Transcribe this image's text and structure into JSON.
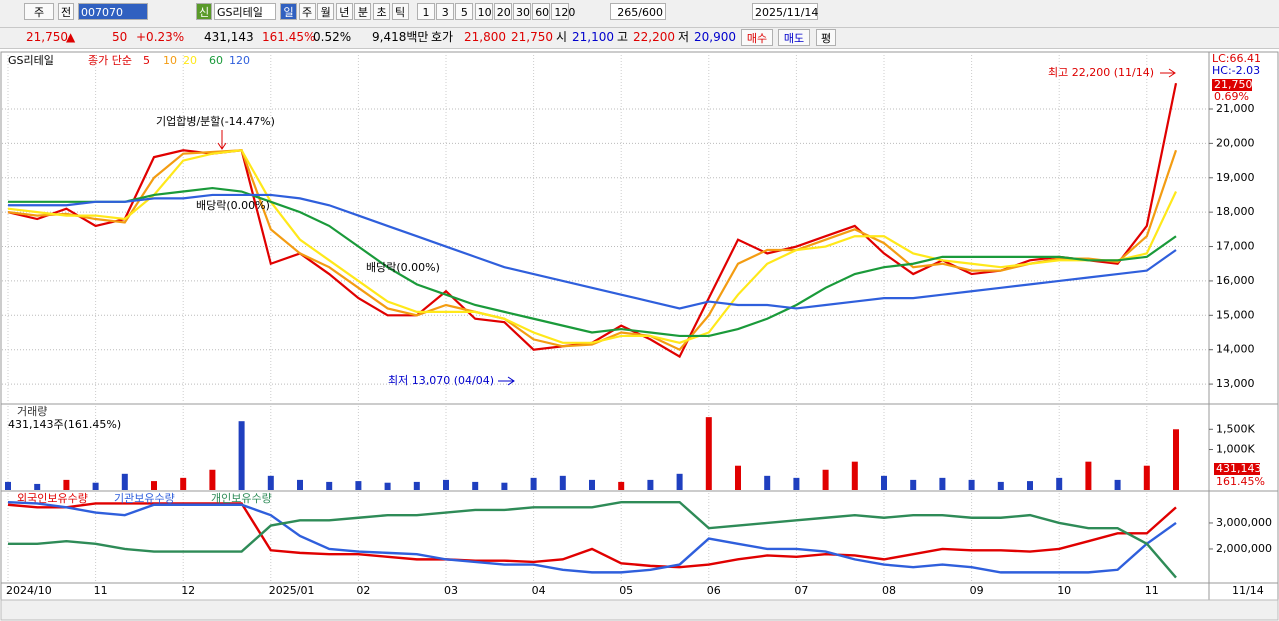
{
  "toolbar": {
    "market": "주",
    "prev": "전",
    "code": "007070",
    "tag": "신",
    "name": "GS리테일",
    "periods": [
      "일",
      "주",
      "월",
      "년",
      "분",
      "초",
      "틱"
    ],
    "intervals": [
      "1",
      "3",
      "5",
      "10",
      "20",
      "30",
      "60",
      "120"
    ],
    "count": "265",
    "max": "/600",
    "date": "2025/11/14"
  },
  "quote": {
    "price": "21,750",
    "arrow": "▲",
    "change": "50",
    "change_pct": "+0.23%",
    "volume": "431,143",
    "volume_ratio": "161.45%",
    "turnover": "0.52%",
    "amount": "9,418백만",
    "ask_label": "호가",
    "ask": "21,800",
    "bid": "21,750",
    "open_label": "시",
    "open": "21,100",
    "high_label": "고",
    "high": "22,200",
    "low_label": "저",
    "low": "20,900",
    "buy": "매수",
    "sell": "매도",
    "avg": "평"
  },
  "chart_data": [
    {
      "type": "line",
      "title": "GS리테일",
      "subtitle": "종가 단순",
      "categories": [
        "2024/10",
        null,
        null,
        "11",
        null,
        null,
        "12",
        null,
        null,
        "2025/01",
        null,
        null,
        "02",
        null,
        null,
        "03",
        null,
        null,
        "04",
        null,
        null,
        "05",
        null,
        null,
        "06",
        null,
        null,
        "07",
        null,
        null,
        "08",
        null,
        null,
        "09",
        null,
        null,
        "10",
        null,
        null,
        "11",
        null
      ],
      "series": [
        {
          "name": "5",
          "color": "#e00000",
          "values": [
            18000,
            17800,
            18100,
            17600,
            17800,
            19600,
            19800,
            19700,
            19800,
            16500,
            16800,
            16200,
            15500,
            15000,
            15000,
            15700,
            14900,
            14800,
            14000,
            14100,
            14200,
            14700,
            14300,
            13800,
            15500,
            17200,
            16800,
            17000,
            17300,
            17600,
            16800,
            16200,
            16600,
            16200,
            16300,
            16600,
            16700,
            16600,
            16500,
            17600,
            21750
          ]
        },
        {
          "name": "10",
          "color": "#f39c12",
          "values": [
            18000,
            17900,
            17950,
            17800,
            17700,
            19000,
            19700,
            19750,
            19800,
            17500,
            16800,
            16400,
            15800,
            15200,
            15000,
            15300,
            15100,
            14900,
            14300,
            14100,
            14150,
            14500,
            14400,
            14000,
            15000,
            16500,
            16900,
            16900,
            17200,
            17500,
            17100,
            16400,
            16500,
            16300,
            16300,
            16500,
            16650,
            16650,
            16550,
            17300,
            19800
          ]
        },
        {
          "name": "20",
          "color": "#ffe81a",
          "values": [
            18100,
            18000,
            17900,
            17900,
            17800,
            18500,
            19500,
            19700,
            19800,
            18300,
            17200,
            16600,
            16000,
            15400,
            15100,
            15100,
            15100,
            14900,
            14500,
            14200,
            14200,
            14400,
            14400,
            14200,
            14500,
            15600,
            16500,
            16900,
            17000,
            17300,
            17300,
            16800,
            16600,
            16500,
            16400,
            16500,
            16600,
            16600,
            16600,
            16800,
            18600
          ]
        },
        {
          "name": "60",
          "color": "#1a9a3a",
          "values": [
            18300,
            18300,
            18300,
            18300,
            18300,
            18500,
            18600,
            18700,
            18600,
            18300,
            18000,
            17600,
            17000,
            16400,
            15900,
            15600,
            15300,
            15100,
            14900,
            14700,
            14500,
            14600,
            14500,
            14400,
            14400,
            14600,
            14900,
            15300,
            15800,
            16200,
            16400,
            16500,
            16700,
            16700,
            16700,
            16700,
            16700,
            16600,
            16600,
            16700,
            17300
          ]
        },
        {
          "name": "120",
          "color": "#2f5fdc",
          "values": [
            18200,
            18200,
            18200,
            18300,
            18300,
            18400,
            18400,
            18500,
            18500,
            18500,
            18400,
            18200,
            17900,
            17600,
            17300,
            17000,
            16700,
            16400,
            16200,
            16000,
            15800,
            15600,
            15400,
            15200,
            15400,
            15300,
            15300,
            15200,
            15300,
            15400,
            15500,
            15500,
            15600,
            15700,
            15800,
            15900,
            16000,
            16100,
            16200,
            16300,
            16900
          ]
        }
      ],
      "ylim": [
        12450,
        22570
      ],
      "yticks": [
        {
          "value": 13000,
          "label": "13,000"
        },
        {
          "value": 14000,
          "label": "14,000"
        },
        {
          "value": 15000,
          "label": "15,000"
        },
        {
          "value": 16000,
          "label": "16,000"
        },
        {
          "value": 17000,
          "label": "17,000"
        },
        {
          "value": 18000,
          "label": "18,000"
        },
        {
          "value": 19000,
          "label": "19,000"
        },
        {
          "value": 20000,
          "label": "20,000"
        },
        {
          "value": 21000,
          "label": "21,000"
        }
      ],
      "grid": true,
      "annotations": [
        "기업합병/분할(-14.47%)",
        "배당락(0.00%)",
        "배당락(0.00%)",
        "최저 13,070 (04/04)",
        "최고 22,200 (11/14)"
      ],
      "side_labels": [
        "LC:66.41",
        "HC:-2.03",
        "21,750",
        "0.69%"
      ]
    },
    {
      "type": "bar",
      "title": "거래량",
      "subtitle": "431,143주(161.45%)",
      "values": [
        200000,
        150000,
        250000,
        180000,
        400000,
        220000,
        300000,
        500000,
        1700000,
        350000,
        250000,
        200000,
        220000,
        180000,
        200000,
        250000,
        200000,
        180000,
        300000,
        350000,
        250000,
        200000,
        250000,
        400000,
        1800000,
        600000,
        350000,
        300000,
        500000,
        700000,
        350000,
        250000,
        300000,
        250000,
        200000,
        220000,
        300000,
        700000,
        250000,
        600000,
        1500000
      ],
      "colors": [
        "#1f3fbf",
        "#1f3fbf",
        "#e00000",
        "#1f3fbf",
        "#1f3fbf",
        "#e00000",
        "#e00000",
        "#e00000",
        "#1f3fbf",
        "#1f3fbf",
        "#1f3fbf",
        "#1f3fbf",
        "#1f3fbf",
        "#1f3fbf",
        "#1f3fbf",
        "#1f3fbf",
        "#1f3fbf",
        "#1f3fbf",
        "#1f3fbf",
        "#1f3fbf",
        "#1f3fbf",
        "#e00000",
        "#1f3fbf",
        "#1f3fbf",
        "#e00000",
        "#e00000",
        "#1f3fbf",
        "#1f3fbf",
        "#e00000",
        "#e00000",
        "#1f3fbf",
        "#1f3fbf",
        "#1f3fbf",
        "#1f3fbf",
        "#1f3fbf",
        "#1f3fbf",
        "#1f3fbf",
        "#e00000",
        "#1f3fbf",
        "#e00000",
        "#e00000"
      ],
      "ylim": [
        0,
        2100000
      ],
      "yticks": [
        {
          "value": 1000000,
          "label": "1,000K"
        },
        {
          "value": 1500000,
          "label": "1,500K"
        }
      ],
      "side_labels": [
        "431,143",
        "161.45%"
      ]
    },
    {
      "type": "line",
      "series": [
        {
          "name": "외국인보유수량",
          "color": "#e00000",
          "values": [
            3700000,
            3600000,
            3600000,
            3750000,
            3750000,
            3750000,
            3750000,
            3750000,
            3750000,
            1950000,
            1850000,
            1800000,
            1800000,
            1700000,
            1600000,
            1600000,
            1550000,
            1550000,
            1500000,
            1600000,
            2000000,
            1450000,
            1350000,
            1300000,
            1400000,
            1600000,
            1750000,
            1700000,
            1800000,
            1750000,
            1600000,
            1800000,
            2000000,
            1950000,
            1950000,
            1900000,
            2000000,
            2300000,
            2600000,
            2600000,
            3600000
          ]
        },
        {
          "name": "기관보유수량",
          "color": "#2f5fdc",
          "values": [
            3800000,
            3750000,
            3600000,
            3400000,
            3300000,
            3700000,
            3700000,
            3700000,
            3700000,
            3300000,
            2500000,
            2000000,
            1900000,
            1850000,
            1800000,
            1600000,
            1500000,
            1400000,
            1400000,
            1200000,
            1100000,
            1100000,
            1200000,
            1400000,
            2400000,
            2200000,
            2000000,
            2000000,
            1900000,
            1600000,
            1400000,
            1300000,
            1400000,
            1300000,
            1100000,
            1100000,
            1100000,
            1100000,
            1200000,
            2200000,
            3000000
          ]
        },
        {
          "name": "개인보유수량",
          "color": "#2e8b57",
          "values": [
            2200000,
            2200000,
            2300000,
            2200000,
            2000000,
            1900000,
            1900000,
            1900000,
            1900000,
            2900000,
            3100000,
            3100000,
            3200000,
            3300000,
            3300000,
            3400000,
            3500000,
            3500000,
            3600000,
            3600000,
            3600000,
            3800000,
            3800000,
            3800000,
            2800000,
            2900000,
            3000000,
            3100000,
            3200000,
            3300000,
            3200000,
            3300000,
            3300000,
            3200000,
            3200000,
            3300000,
            3000000,
            2800000,
            2800000,
            2200000,
            900000
          ]
        }
      ],
      "ylim": [
        730000,
        4190000
      ],
      "yticks": [
        {
          "value": 2000000,
          "label": "2,000,000"
        },
        {
          "value": 3000000,
          "label": "3,000,000"
        }
      ]
    }
  ],
  "x_end_label": "11/14"
}
